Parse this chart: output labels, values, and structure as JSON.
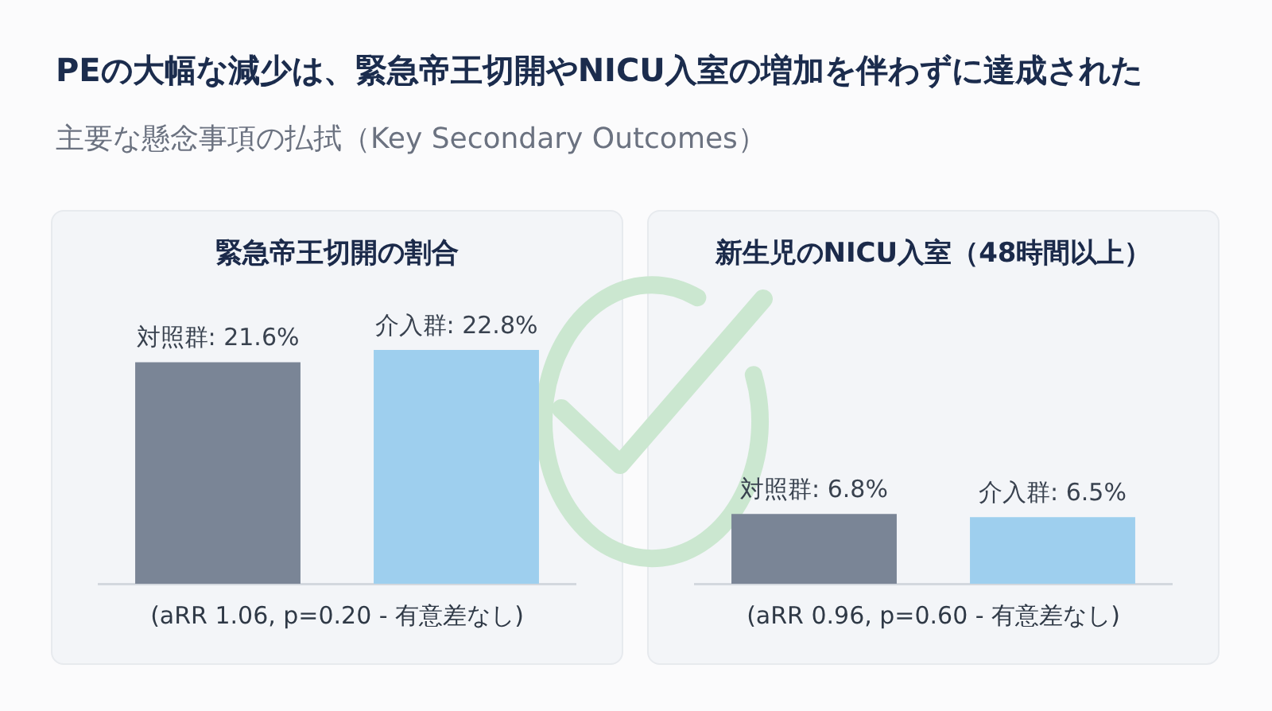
{
  "chart_data": [
    {
      "type": "other",
      "title": "PEの大幅な減少は、緊急帝王切開やNICU入室の増加を伴わずに達成された",
      "subtitle": "主要な懸念事項の払拭（Key Secondary Outcomes）"
    },
    {
      "type": "bar",
      "title": "緊急帝王切開の割合",
      "categories": [
        null,
        null
      ],
      "values": [
        21.6,
        22.8
      ],
      "colors": [
        "#7a8596",
        "#9ecfee"
      ],
      "value_labels": [
        "対照群: 21.6%",
        "介入群: 22.8%"
      ],
      "tick_labels": false,
      "annotations": [
        "(aRR 1.06, p=0.20 - 有意差なし)"
      ]
    },
    {
      "type": "bar",
      "title": "新生児のNICU入室（48時間以上）",
      "categories": [
        null,
        null
      ],
      "values": [
        6.8,
        6.5
      ],
      "colors": [
        "#7a8596",
        "#9ecfee"
      ],
      "value_labels": [
        "対照群: 6.8%",
        "介入群: 6.5%"
      ],
      "tick_labels": false,
      "annotations": [
        "(aRR 0.96, p=0.60 - 有意差なし)"
      ]
    }
  ]
}
